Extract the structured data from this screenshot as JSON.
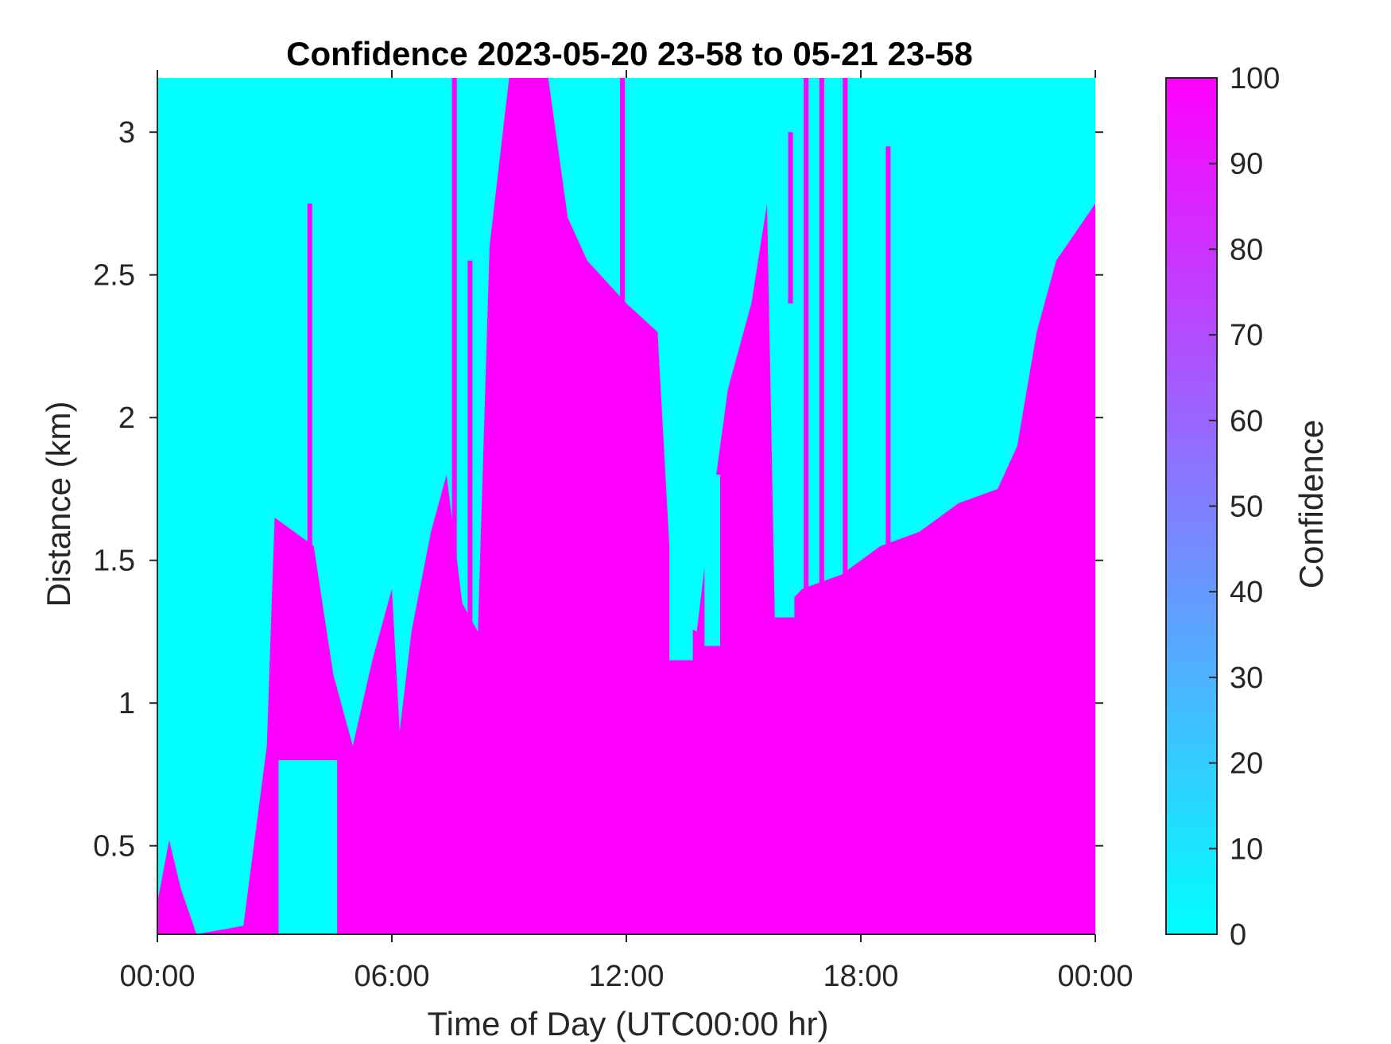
{
  "chart_data": {
    "type": "heatmap",
    "title": "Confidence 2023-05-20 23-58 to 05-21 23-58",
    "xlabel": "Time of Day (UTC00:00 hr)",
    "ylabel": "Distance (km)",
    "x_tick_labels": [
      "00:00",
      "06:00",
      "12:00",
      "18:00",
      "00:00"
    ],
    "x_ticks_hours": [
      0,
      6,
      12,
      18,
      24
    ],
    "xlim_hours": [
      0,
      24
    ],
    "y_ticks": [
      0.5,
      1,
      1.5,
      2,
      2.5,
      3
    ],
    "y_tick_labels": [
      "0.5",
      "1",
      "1.5",
      "2",
      "2.5",
      "3"
    ],
    "ylim_km": [
      0.19,
      3.19
    ],
    "colorbar": {
      "label": "Confidence",
      "ticks": [
        0,
        10,
        20,
        30,
        40,
        50,
        60,
        70,
        80,
        90,
        100
      ],
      "tick_labels": [
        "0",
        "10",
        "20",
        "30",
        "40",
        "50",
        "60",
        "70",
        "80",
        "90",
        "100"
      ],
      "range": [
        0,
        100
      ],
      "color_low": "#00ffff",
      "color_high": "#ff00ff"
    },
    "high_confidence_top_km": [
      {
        "hour": 0.0,
        "km": 0.3
      },
      {
        "hour": 0.3,
        "km": 0.52
      },
      {
        "hour": 0.6,
        "km": 0.35
      },
      {
        "hour": 1.0,
        "km": 0.19
      },
      {
        "hour": 2.2,
        "km": 0.22
      },
      {
        "hour": 2.8,
        "km": 0.85
      },
      {
        "hour": 3.0,
        "km": 1.65
      },
      {
        "hour": 3.5,
        "km": 1.6
      },
      {
        "hour": 4.0,
        "km": 1.55
      },
      {
        "hour": 4.5,
        "km": 1.1
      },
      {
        "hour": 5.0,
        "km": 0.85
      },
      {
        "hour": 5.5,
        "km": 1.15
      },
      {
        "hour": 6.0,
        "km": 1.4
      },
      {
        "hour": 6.2,
        "km": 0.9
      },
      {
        "hour": 6.5,
        "km": 1.25
      },
      {
        "hour": 7.0,
        "km": 1.6
      },
      {
        "hour": 7.4,
        "km": 1.8
      },
      {
        "hour": 7.8,
        "km": 1.35
      },
      {
        "hour": 8.2,
        "km": 1.25
      },
      {
        "hour": 8.5,
        "km": 2.6
      },
      {
        "hour": 9.0,
        "km": 3.19
      },
      {
        "hour": 10.0,
        "km": 3.19
      },
      {
        "hour": 10.5,
        "km": 2.7
      },
      {
        "hour": 11.0,
        "km": 2.55
      },
      {
        "hour": 12.0,
        "km": 2.4
      },
      {
        "hour": 12.8,
        "km": 2.3
      },
      {
        "hour": 13.2,
        "km": 1.3
      },
      {
        "hour": 13.8,
        "km": 1.25
      },
      {
        "hour": 14.2,
        "km": 1.7
      },
      {
        "hour": 14.6,
        "km": 2.1
      },
      {
        "hour": 15.2,
        "km": 2.4
      },
      {
        "hour": 15.6,
        "km": 2.75
      },
      {
        "hour": 15.8,
        "km": 1.3
      },
      {
        "hour": 16.5,
        "km": 1.4
      },
      {
        "hour": 17.5,
        "km": 1.45
      },
      {
        "hour": 18.5,
        "km": 1.55
      },
      {
        "hour": 19.5,
        "km": 1.6
      },
      {
        "hour": 20.5,
        "km": 1.7
      },
      {
        "hour": 21.5,
        "km": 1.75
      },
      {
        "hour": 22.0,
        "km": 1.9
      },
      {
        "hour": 22.5,
        "km": 2.3
      },
      {
        "hour": 23.0,
        "km": 2.55
      },
      {
        "hour": 23.5,
        "km": 2.65
      },
      {
        "hour": 24.0,
        "km": 2.75
      }
    ],
    "high_confidence_streaks": [
      {
        "hour": 3.9,
        "top_km": 2.75
      },
      {
        "hour": 7.6,
        "top_km": 3.19
      },
      {
        "hour": 8.0,
        "top_km": 2.55
      },
      {
        "hour": 11.9,
        "top_km": 3.19
      },
      {
        "hour": 16.2,
        "top_km": 3.0
      },
      {
        "hour": 16.6,
        "top_km": 3.19
      },
      {
        "hour": 17.0,
        "top_km": 3.19
      },
      {
        "hour": 17.6,
        "top_km": 3.19
      },
      {
        "hour": 18.7,
        "top_km": 2.95
      }
    ],
    "low_confidence_pockets": [
      {
        "hour_start": 3.1,
        "hour_end": 4.6,
        "km_bottom": 0.19,
        "km_top": 0.8
      },
      {
        "hour_start": 13.1,
        "hour_end": 13.7,
        "km_bottom": 1.15,
        "km_top": 2.4
      },
      {
        "hour_start": 14.0,
        "hour_end": 14.4,
        "km_bottom": 1.2,
        "km_top": 1.8
      },
      {
        "hour_start": 15.8,
        "hour_end": 16.3,
        "km_bottom": 1.3,
        "km_top": 2.4
      }
    ],
    "grid": false
  }
}
